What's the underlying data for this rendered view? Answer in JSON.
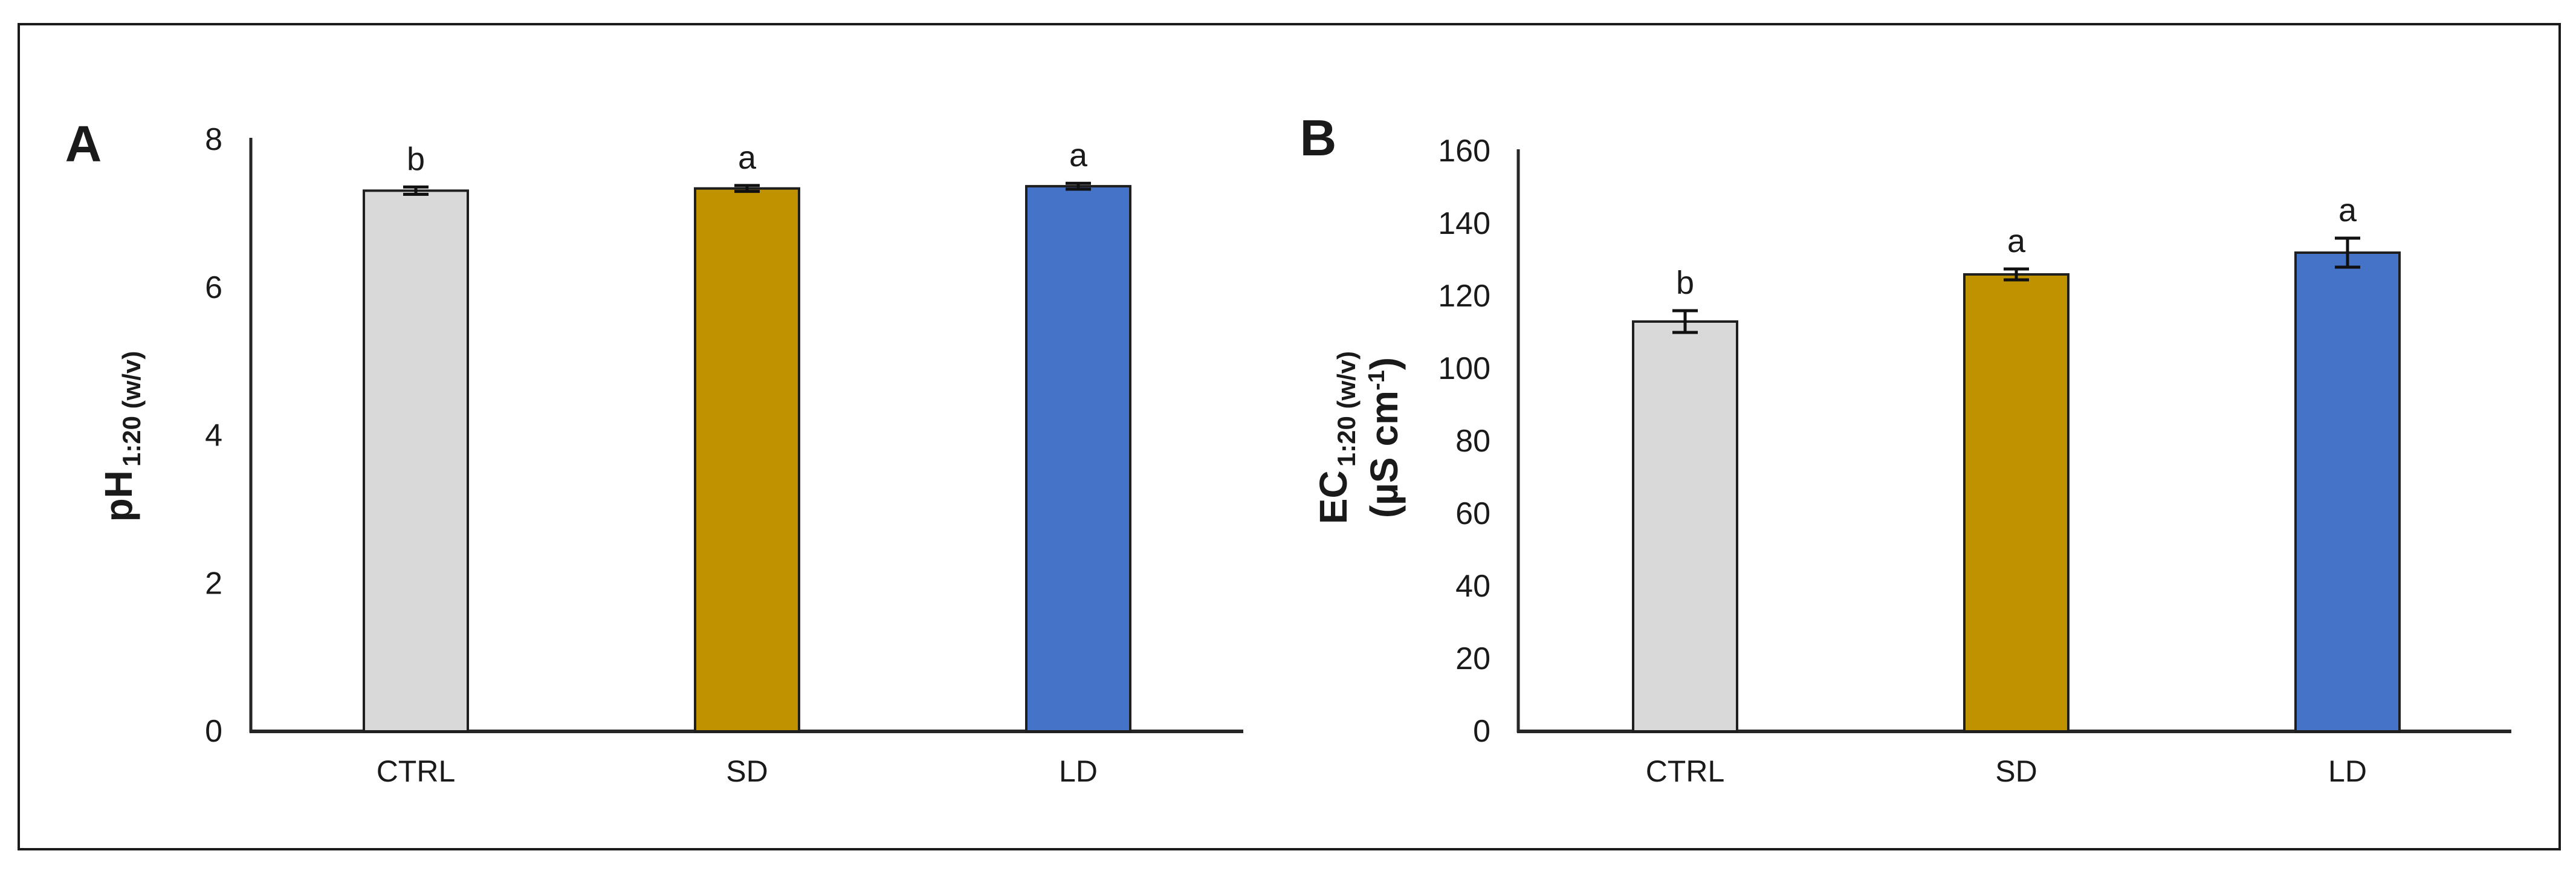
{
  "figure": {
    "panels": [
      {
        "panel_letter": "A"
      },
      {
        "panel_letter": "B"
      }
    ]
  },
  "colors": {
    "bar_gray": "#D9D9D9",
    "bar_gold": "#C09200",
    "bar_blue": "#4573C7",
    "bar_outline": "#1f1f1f",
    "axis_line": "#262626",
    "error_bar": "#111111",
    "text": "#1a1a1a",
    "frame_border": "#1a1a1a"
  },
  "chart_data": [
    {
      "type": "bar",
      "panel_letter": "A",
      "categories": [
        "CTRL",
        "SD",
        "LD"
      ],
      "values": [
        7.31,
        7.34,
        7.37
      ],
      "errors": [
        0.05,
        0.04,
        0.04
      ],
      "sig_letters": [
        "b",
        "a",
        "a"
      ],
      "bar_colors": [
        "#D9D9D9",
        "#C09200",
        "#4573C7"
      ],
      "ylim": [
        0,
        8
      ],
      "ytick_step": 2,
      "yticks": [
        0,
        2,
        4,
        6,
        8
      ],
      "ylabel_main": "pH",
      "ylabel_subscript": "1:20 (w/v)",
      "ylabel_line2_pre": "",
      "ylabel_line2_sup": "",
      "ylabel_line2_post": "",
      "grid": false,
      "legend": false
    },
    {
      "type": "bar",
      "panel_letter": "B",
      "categories": [
        "CTRL",
        "SD",
        "LD"
      ],
      "values": [
        113,
        126,
        132
      ],
      "errors": [
        3,
        1.5,
        4
      ],
      "sig_letters": [
        "b",
        "a",
        "a"
      ],
      "bar_colors": [
        "#D9D9D9",
        "#C09200",
        "#4573C7"
      ],
      "ylim": [
        0,
        160
      ],
      "ytick_step": 20,
      "yticks": [
        0,
        20,
        40,
        60,
        80,
        100,
        120,
        140,
        160
      ],
      "ylabel_main": "EC",
      "ylabel_subscript": "1:20 (w/v)",
      "ylabel_line2_pre": "(µS cm",
      "ylabel_line2_sup": "-1",
      "ylabel_line2_post": ")",
      "grid": false,
      "legend": false
    }
  ]
}
